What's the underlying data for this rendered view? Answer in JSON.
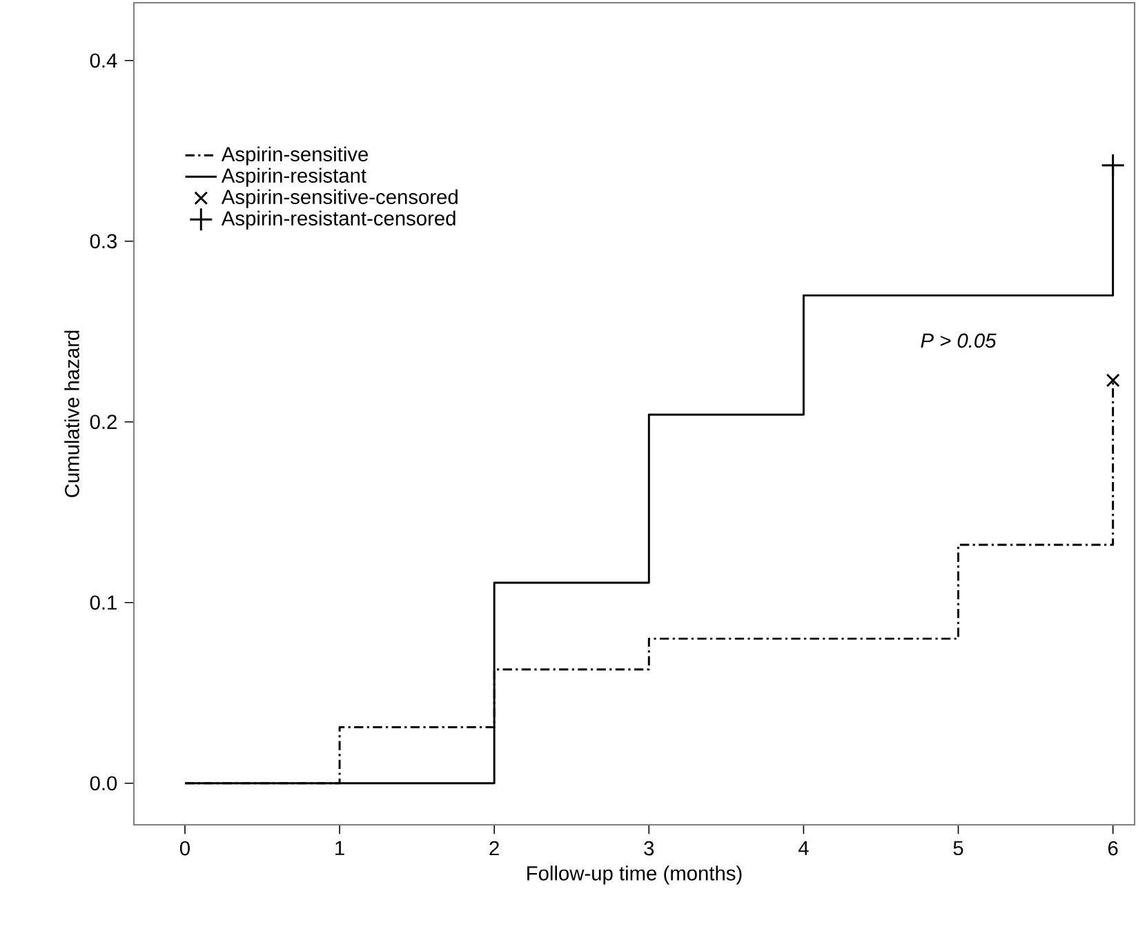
{
  "chart_data": {
    "type": "step",
    "xlabel": "Follow-up time (months)",
    "ylabel": "Cumulative hazard",
    "xlim": [
      -0.33,
      6.14
    ],
    "ylim": [
      -0.023,
      0.432
    ],
    "xticks": [
      0,
      1,
      2,
      3,
      4,
      5,
      6
    ],
    "yticks": [
      {
        "value": 0,
        "label": "0.0"
      },
      {
        "value": 0.1,
        "label": "0.1"
      },
      {
        "value": 0.2,
        "label": "0.2"
      },
      {
        "value": 0.3,
        "label": "0.3"
      },
      {
        "value": 0.4,
        "label": "0.4"
      }
    ],
    "legend": "top left",
    "grid": false,
    "annotations": [
      "P > 0.05"
    ],
    "series": [
      {
        "name": "Aspirin-sensitive",
        "color": "#000000",
        "line_style": "dashdot",
        "marker": "none",
        "x": [
          0,
          1,
          2,
          3,
          5,
          6
        ],
        "values": [
          0,
          0.031,
          0.063,
          0.08,
          0.132,
          0.223
        ]
      },
      {
        "name": "Aspirin-resistant",
        "color": "#000000",
        "line_style": "solid",
        "marker": "none",
        "x": [
          0,
          2,
          3,
          4,
          6
        ],
        "values": [
          0,
          0.111,
          0.204,
          0.27,
          0.342
        ]
      },
      {
        "name": "Aspirin-sensitive-censored",
        "type": "scatter",
        "color": "#000000",
        "marker": "cross",
        "x": [
          6
        ],
        "values": [
          0.223
        ]
      },
      {
        "name": "Aspirin-resistant-censored",
        "type": "scatter",
        "color": "#000000",
        "marker": "plus",
        "x": [
          6
        ],
        "values": [
          0.342
        ]
      }
    ]
  }
}
